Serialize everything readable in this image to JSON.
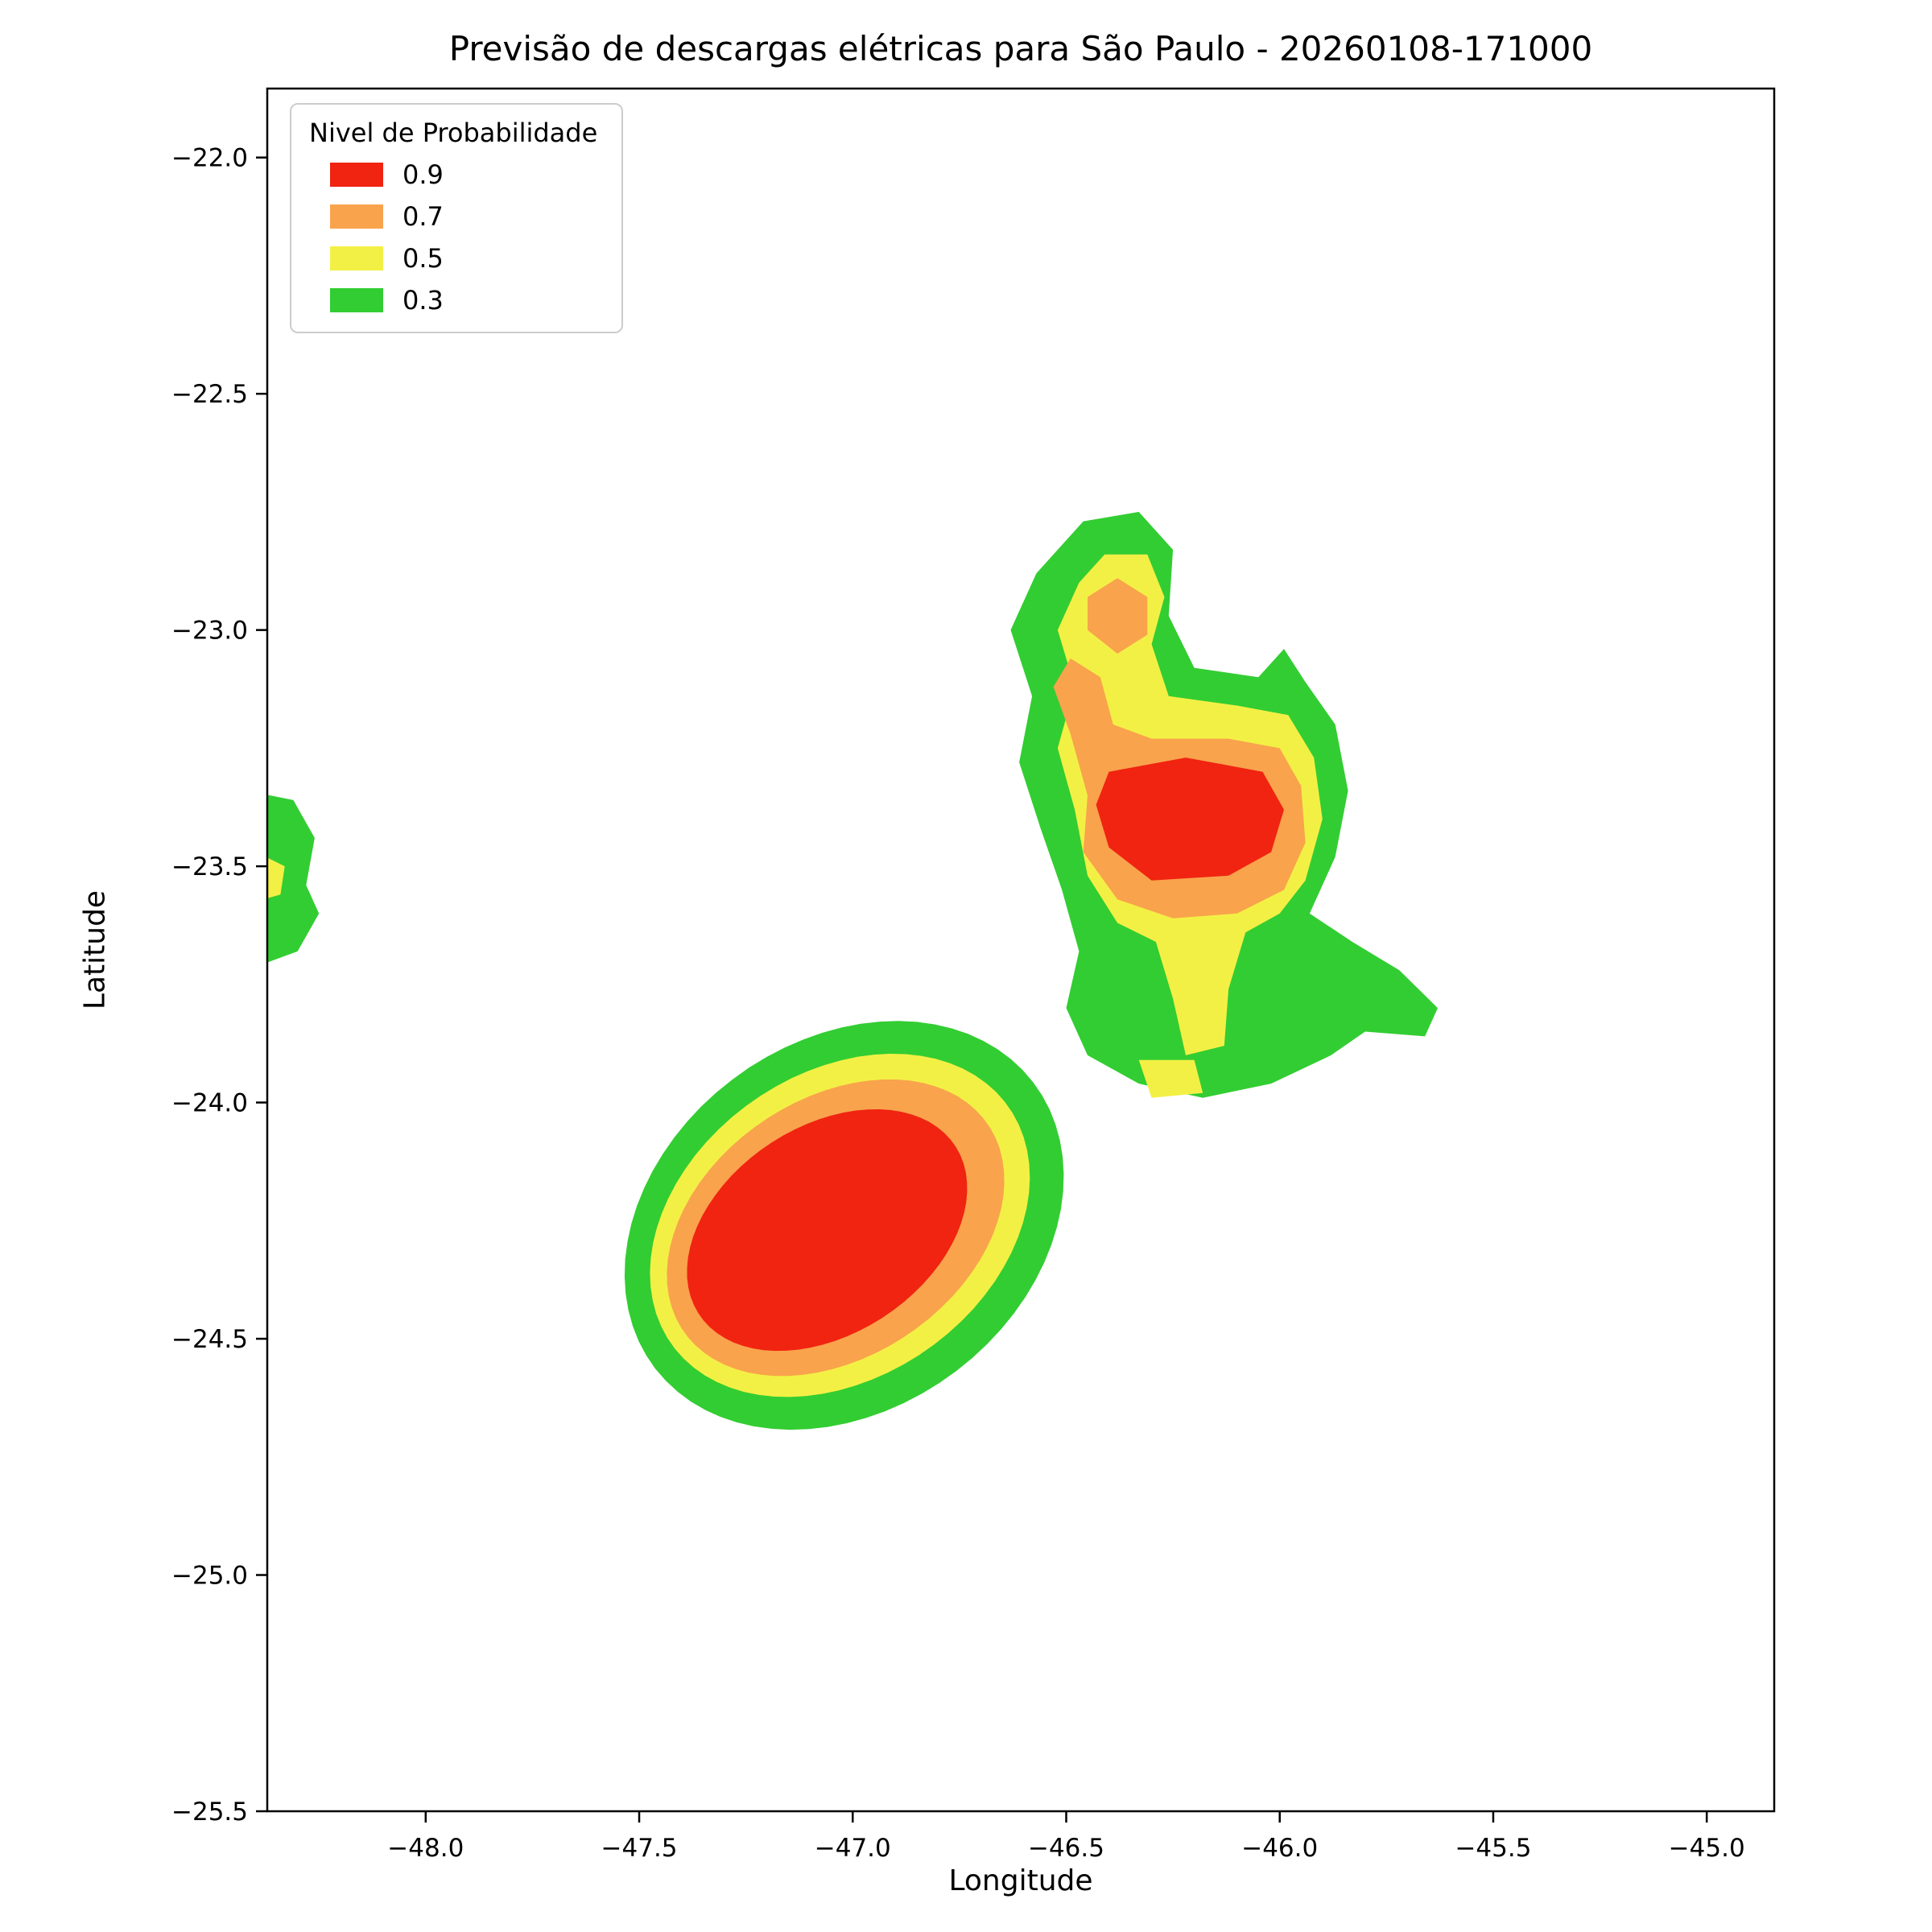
{
  "chart_data": {
    "type": "area",
    "subtype": "filled-contour-probability-map",
    "title": "Previsão de descargas elétricas para São Paulo - 20260108-171000",
    "xlabel": "Longitude",
    "ylabel": "Latitude",
    "xlim": [
      -48.371,
      -44.842
    ],
    "ylim": [
      -25.5,
      -21.854
    ],
    "grid": false,
    "background": "#ffffff",
    "xticks": [
      -48.0,
      -47.5,
      -47.0,
      -46.5,
      -46.0,
      -45.5,
      -45.0
    ],
    "xtick_labels": [
      "−48.0",
      "−47.5",
      "−47.0",
      "−46.5",
      "−46.0",
      "−45.5",
      "−45.0"
    ],
    "yticks": [
      -22.0,
      -22.5,
      -23.0,
      -23.5,
      -24.0,
      -24.5,
      -25.0,
      -25.5
    ],
    "ytick_labels": [
      "−22.0",
      "−22.5",
      "−23.0",
      "−23.5",
      "−24.0",
      "−24.5",
      "−25.0",
      "−25.5"
    ],
    "legend": {
      "title": "Nivel de Probabilidade",
      "position": "upper-left",
      "entries": [
        {
          "label": "0.9",
          "level": 0.9,
          "color": "#f02411"
        },
        {
          "label": "0.7",
          "level": 0.7,
          "color": "#f9a34c"
        },
        {
          "label": "0.5",
          "level": 0.5,
          "color": "#f3f045"
        },
        {
          "label": "0.3",
          "level": 0.3,
          "color": "#32cd32"
        }
      ]
    },
    "level_colors": {
      "0.3": "#32cd32",
      "0.5": "#f3f045",
      "0.7": "#f9a34c",
      "0.9": "#f02411"
    },
    "regions": [
      {
        "name": "west-edge-cell-green",
        "level": 0.3,
        "shape": "polygon",
        "points": [
          [
            -48.42,
            -23.34
          ],
          [
            -48.31,
            -23.36
          ],
          [
            -48.26,
            -23.44
          ],
          [
            -48.28,
            -23.54
          ],
          [
            -48.25,
            -23.6
          ],
          [
            -48.3,
            -23.68
          ],
          [
            -48.42,
            -23.72
          ]
        ]
      },
      {
        "name": "west-edge-cell-yellow",
        "level": 0.5,
        "shape": "polygon",
        "points": [
          [
            -48.42,
            -23.46
          ],
          [
            -48.33,
            -23.5
          ],
          [
            -48.34,
            -23.56
          ],
          [
            -48.42,
            -23.58
          ]
        ]
      },
      {
        "name": "northeast-cell-green",
        "level": 0.3,
        "shape": "polygon",
        "points": [
          [
            -46.46,
            -22.77
          ],
          [
            -46.33,
            -22.75
          ],
          [
            -46.25,
            -22.83
          ],
          [
            -46.26,
            -22.97
          ],
          [
            -46.2,
            -23.08
          ],
          [
            -46.05,
            -23.1
          ],
          [
            -45.99,
            -23.04
          ],
          [
            -45.94,
            -23.11
          ],
          [
            -45.87,
            -23.2
          ],
          [
            -45.84,
            -23.34
          ],
          [
            -45.87,
            -23.48
          ],
          [
            -45.93,
            -23.6
          ],
          [
            -45.83,
            -23.66
          ],
          [
            -45.72,
            -23.72
          ],
          [
            -45.63,
            -23.8
          ],
          [
            -45.66,
            -23.86
          ],
          [
            -45.8,
            -23.85
          ],
          [
            -45.88,
            -23.9
          ],
          [
            -46.02,
            -23.96
          ],
          [
            -46.18,
            -23.99
          ],
          [
            -46.33,
            -23.96
          ],
          [
            -46.45,
            -23.9
          ],
          [
            -46.5,
            -23.8
          ],
          [
            -46.47,
            -23.68
          ],
          [
            -46.51,
            -23.55
          ],
          [
            -46.56,
            -23.42
          ],
          [
            -46.61,
            -23.28
          ],
          [
            -46.58,
            -23.14
          ],
          [
            -46.63,
            -23.0
          ],
          [
            -46.57,
            -22.88
          ]
        ]
      },
      {
        "name": "northeast-cell-yellow",
        "level": 0.5,
        "shape": "polygon",
        "points": [
          [
            -46.41,
            -22.84
          ],
          [
            -46.31,
            -22.84
          ],
          [
            -46.27,
            -22.93
          ],
          [
            -46.3,
            -23.03
          ],
          [
            -46.26,
            -23.14
          ],
          [
            -46.1,
            -23.16
          ],
          [
            -45.98,
            -23.18
          ],
          [
            -45.92,
            -23.27
          ],
          [
            -45.9,
            -23.4
          ],
          [
            -45.94,
            -23.53
          ],
          [
            -46.0,
            -23.6
          ],
          [
            -46.08,
            -23.64
          ],
          [
            -46.12,
            -23.76
          ],
          [
            -46.13,
            -23.88
          ],
          [
            -46.22,
            -23.9
          ],
          [
            -46.25,
            -23.78
          ],
          [
            -46.29,
            -23.66
          ],
          [
            -46.38,
            -23.62
          ],
          [
            -46.45,
            -23.52
          ],
          [
            -46.48,
            -23.38
          ],
          [
            -46.52,
            -23.25
          ],
          [
            -46.48,
            -23.12
          ],
          [
            -46.52,
            -23.0
          ],
          [
            -46.47,
            -22.9
          ]
        ]
      },
      {
        "name": "northeast-cell-yellow-spot-south",
        "level": 0.5,
        "shape": "polygon",
        "points": [
          [
            -46.33,
            -23.91
          ],
          [
            -46.2,
            -23.91
          ],
          [
            -46.18,
            -23.98
          ],
          [
            -46.3,
            -23.99
          ]
        ]
      },
      {
        "name": "northeast-cell-orange-spot-north",
        "level": 0.7,
        "shape": "polygon",
        "points": [
          [
            -46.45,
            -22.93
          ],
          [
            -46.38,
            -22.89
          ],
          [
            -46.31,
            -22.93
          ],
          [
            -46.31,
            -23.01
          ],
          [
            -46.38,
            -23.05
          ],
          [
            -46.45,
            -23.0
          ]
        ]
      },
      {
        "name": "northeast-cell-orange-ring",
        "level": 0.7,
        "shape": "polygon",
        "points": [
          [
            -46.49,
            -23.06
          ],
          [
            -46.42,
            -23.1
          ],
          [
            -46.39,
            -23.2
          ],
          [
            -46.3,
            -23.23
          ],
          [
            -46.12,
            -23.23
          ],
          [
            -46.0,
            -23.25
          ],
          [
            -45.95,
            -23.33
          ],
          [
            -45.94,
            -23.45
          ],
          [
            -45.99,
            -23.55
          ],
          [
            -46.1,
            -23.6
          ],
          [
            -46.25,
            -23.61
          ],
          [
            -46.38,
            -23.57
          ],
          [
            -46.46,
            -23.47
          ],
          [
            -46.45,
            -23.35
          ],
          [
            -46.49,
            -23.22
          ],
          [
            -46.53,
            -23.12
          ]
        ]
      },
      {
        "name": "northeast-cell-red-core",
        "level": 0.9,
        "shape": "polygon",
        "points": [
          [
            -46.4,
            -23.3
          ],
          [
            -46.22,
            -23.27
          ],
          [
            -46.04,
            -23.3
          ],
          [
            -45.99,
            -23.38
          ],
          [
            -46.02,
            -23.47
          ],
          [
            -46.12,
            -23.52
          ],
          [
            -46.3,
            -23.53
          ],
          [
            -46.4,
            -23.46
          ],
          [
            -46.43,
            -23.37
          ]
        ]
      },
      {
        "name": "southwest-cell-green",
        "level": 0.3,
        "shape": "ellipse",
        "cx": -47.02,
        "cy": -24.26,
        "rx": 0.54,
        "ry": 0.4,
        "rot": 27
      },
      {
        "name": "southwest-cell-yellow",
        "level": 0.5,
        "shape": "ellipse",
        "cx": -47.03,
        "cy": -24.26,
        "rx": 0.47,
        "ry": 0.33,
        "rot": 27
      },
      {
        "name": "southwest-cell-orange",
        "level": 0.7,
        "shape": "ellipse",
        "cx": -47.04,
        "cy": -24.265,
        "rx": 0.42,
        "ry": 0.28,
        "rot": 27
      },
      {
        "name": "southwest-cell-red-core",
        "level": 0.9,
        "shape": "ellipse",
        "cx": -47.06,
        "cy": -24.27,
        "rx": 0.35,
        "ry": 0.225,
        "rot": 27
      }
    ]
  }
}
